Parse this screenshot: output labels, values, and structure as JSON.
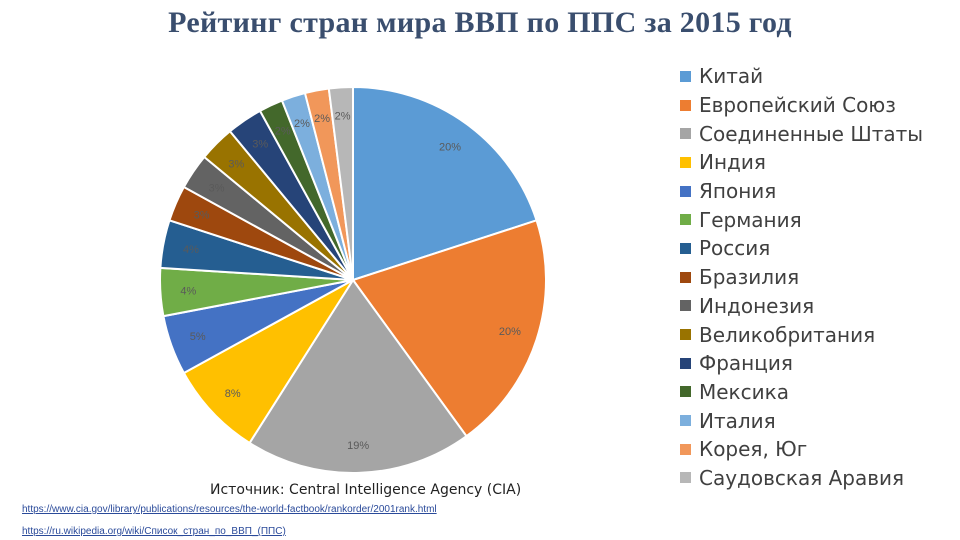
{
  "title": "Рейтинг стран мира ВВП по ППС за 2015 год",
  "source": {
    "label": "Источник:  Central Intelligence Agency (CIA)",
    "links": [
      "https://www.cia.gov/library/publications/resources/the-world-factbook/rankorder/2001rank.html",
      "https://ru.wikipedia.org/wiki/Список_стран_по_ВВП_(ППС)"
    ]
  },
  "chart_data": {
    "type": "pie",
    "title": "Рейтинг стран мира ВВП по ППС за 2015 год",
    "legend_position": "right",
    "value_format": "percent",
    "categories": [
      "Китай",
      "Европейский Союз",
      "Соединенные Штаты",
      "Индия",
      "Япония",
      "Германия",
      "Россия",
      "Бразилия",
      "Индонезия",
      "Великобритания",
      "Франция",
      "Мексика",
      "Италия",
      "Корея, Юг",
      "Саудовская Аравия"
    ],
    "values": [
      20,
      20,
      19,
      8,
      5,
      4,
      4,
      3,
      3,
      3,
      3,
      2,
      2,
      2,
      2
    ],
    "labels": [
      "20%",
      "20%",
      "19%",
      "8%",
      "5%",
      "4%",
      "4%",
      "3%",
      "3%",
      "3%",
      "3%",
      "2%",
      "2%",
      "2%",
      "2%"
    ],
    "colors": [
      "#5b9bd5",
      "#ed7d31",
      "#a5a5a5",
      "#ffc000",
      "#4472c4",
      "#70ad47",
      "#255e91",
      "#9e480e",
      "#636363",
      "#997300",
      "#264478",
      "#43682b",
      "#7cafdd",
      "#f1975a",
      "#b7b7b7"
    ]
  }
}
